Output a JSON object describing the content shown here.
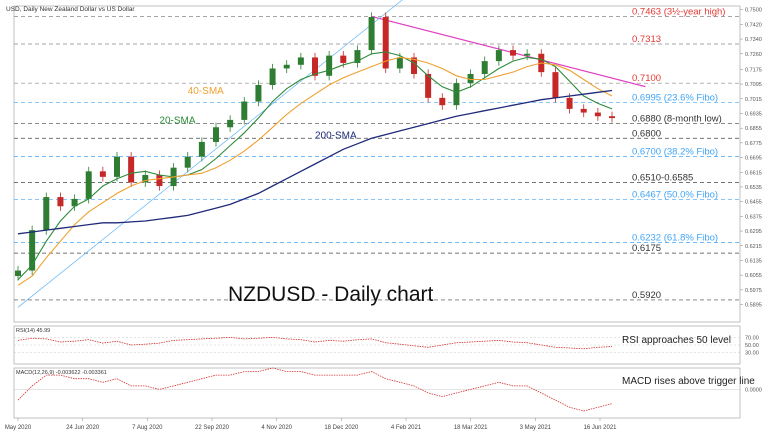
{
  "header": {
    "title": "USD, Daily  New Zealand Dollar vs US Dollar"
  },
  "colors": {
    "price_up": "#2e7d32",
    "price_down": "#c62828",
    "sma20": "#2e8b3a",
    "sma40": "#f0a030",
    "sma200": "#1f2a7a",
    "trendline": "#e040c0",
    "channel": "#64b5f6",
    "level_red": "#e53935",
    "level_fibo": "#42a5f5",
    "level_black": "#333333",
    "rsi": "#d32f2f",
    "macd": "#d32f2f"
  },
  "chart_data": [
    {
      "type": "candlestick",
      "title": "NZDUSD - Daily chart",
      "ylim": [
        0.58,
        0.752
      ],
      "x_ticks": [
        "May 2020",
        "24 Jun 2020",
        "7 Aug 2020",
        "22 Sep 2020",
        "4 Nov 2020",
        "18 Dec 2020",
        "4 Feb 2021",
        "18 Mar 2021",
        "3 May 2021",
        "16 Jun 2021"
      ],
      "price_close": [
        0.608,
        0.63,
        0.648,
        0.643,
        0.647,
        0.662,
        0.659,
        0.67,
        0.656,
        0.66,
        0.654,
        0.664,
        0.67,
        0.678,
        0.686,
        0.69,
        0.7,
        0.709,
        0.718,
        0.72,
        0.724,
        0.714,
        0.725,
        0.721,
        0.728,
        0.746,
        0.718,
        0.724,
        0.715,
        0.702,
        0.698,
        0.71,
        0.715,
        0.722,
        0.728,
        0.725,
        0.726,
        0.716,
        0.702,
        0.696,
        0.694,
        0.692,
        0.691
      ],
      "series": [
        {
          "name": "20-SMA",
          "values": [
            0.603,
            0.611,
            0.624,
            0.635,
            0.643,
            0.647,
            0.654,
            0.658,
            0.661,
            0.662,
            0.66,
            0.659,
            0.66,
            0.663,
            0.669,
            0.676,
            0.683,
            0.691,
            0.7,
            0.707,
            0.712,
            0.715,
            0.717,
            0.72,
            0.722,
            0.726,
            0.727,
            0.725,
            0.721,
            0.714,
            0.708,
            0.705,
            0.708,
            0.713,
            0.718,
            0.722,
            0.724,
            0.723,
            0.719,
            0.711,
            0.703,
            0.699,
            0.696
          ]
        },
        {
          "name": "40-SMA",
          "values": [
            0.6,
            0.605,
            0.615,
            0.624,
            0.633,
            0.64,
            0.645,
            0.65,
            0.654,
            0.657,
            0.658,
            0.659,
            0.66,
            0.661,
            0.664,
            0.668,
            0.673,
            0.679,
            0.686,
            0.693,
            0.699,
            0.704,
            0.709,
            0.713,
            0.716,
            0.719,
            0.722,
            0.724,
            0.723,
            0.721,
            0.718,
            0.714,
            0.712,
            0.712,
            0.714,
            0.716,
            0.719,
            0.721,
            0.72,
            0.717,
            0.712,
            0.707,
            0.703
          ]
        },
        {
          "name": "200-SMA",
          "values": [
            0.628,
            0.629,
            0.63,
            0.631,
            0.632,
            0.633,
            0.634,
            0.634,
            0.6345,
            0.635,
            0.636,
            0.637,
            0.638,
            0.64,
            0.642,
            0.644,
            0.647,
            0.65,
            0.654,
            0.658,
            0.662,
            0.666,
            0.67,
            0.674,
            0.677,
            0.68,
            0.682,
            0.684,
            0.686,
            0.688,
            0.69,
            0.692,
            0.6935,
            0.695,
            0.6965,
            0.698,
            0.6995,
            0.701,
            0.702,
            0.703,
            0.704,
            0.705,
            0.706
          ]
        }
      ],
      "levels": [
        {
          "value": 0.7463,
          "label": "0.7463 (3½-year high)",
          "style": "red"
        },
        {
          "value": 0.7313,
          "label": "0.7313",
          "style": "red"
        },
        {
          "value": 0.71,
          "label": "0.7100",
          "style": "red"
        },
        {
          "value": 0.6995,
          "label": "0.6995 (23.6% Fibo)",
          "style": "fibo"
        },
        {
          "value": 0.688,
          "label": "0.6880 (8-month low)",
          "style": "black"
        },
        {
          "value": 0.68,
          "label": "0.6800",
          "style": "black"
        },
        {
          "value": 0.67,
          "label": "0.6700 (38.2% Fibo)",
          "style": "fibo"
        },
        {
          "value": 0.656,
          "label": "0.6510-0.6585",
          "style": "black"
        },
        {
          "value": 0.6467,
          "label": "0.6467 (50.0% Fibo)",
          "style": "fibo"
        },
        {
          "value": 0.6232,
          "label": "0.6232 (61.8% Fibo)",
          "style": "fibo"
        },
        {
          "value": 0.6175,
          "label": "0.6175",
          "style": "black"
        },
        {
          "value": 0.592,
          "label": "0.5920",
          "style": "black"
        }
      ],
      "annotations": [
        {
          "text": "40-SMA",
          "x": 12,
          "y": 0.704,
          "color": "sma40"
        },
        {
          "text": "20-SMA",
          "x": 10,
          "y": 0.688,
          "color": "sma20"
        },
        {
          "text": "200-SMA",
          "x": 21,
          "y": 0.68,
          "color": "sma200"
        }
      ],
      "trendlines": [
        {
          "name": "descending-trendline",
          "points": [
            [
              25,
              0.7463
            ],
            [
              38,
              0.715
            ]
          ],
          "color": "trendline"
        },
        {
          "name": "ascending-channel-line",
          "points": [
            [
              0,
              0.588
            ],
            [
              25,
              0.7463
            ]
          ],
          "color": "channel"
        }
      ],
      "y_ticks": [
        "0.7500",
        "0.7420",
        "0.7340",
        "0.7260",
        "0.7175",
        "0.7095",
        "0.7015",
        "0.6935",
        "0.6855",
        "0.6775",
        "0.6695",
        "0.6615",
        "0.6535",
        "0.6455",
        "0.6375",
        "0.6295",
        "0.6215",
        "0.6135",
        "0.6055",
        "0.5975",
        "0.5895"
      ]
    },
    {
      "type": "line",
      "name": "RSI",
      "header": "RSI(14) 45.99",
      "ylim": [
        0,
        100
      ],
      "y_ticks": [
        "70.00",
        "50.00",
        "30.00"
      ],
      "annotation": "RSI approaches 50 level",
      "values": [
        62,
        68,
        66,
        58,
        60,
        64,
        55,
        60,
        50,
        52,
        55,
        62,
        64,
        66,
        68,
        70,
        66,
        68,
        70,
        66,
        64,
        58,
        62,
        60,
        64,
        66,
        56,
        52,
        48,
        44,
        50,
        56,
        58,
        60,
        62,
        58,
        56,
        50,
        44,
        42,
        40,
        44,
        46
      ]
    },
    {
      "type": "line",
      "name": "MACD",
      "header": "MACD(12,26,9) -0.003622 -0.003361",
      "ylim": [
        -0.008,
        0.006
      ],
      "y_ticks": [
        "0.0000"
      ],
      "annotation": "MACD rises above trigger line",
      "values": [
        -0.003,
        0.001,
        0.004,
        0.004,
        0.003,
        0.003,
        0.002,
        0.003,
        0.001,
        0.001,
        0.0,
        0.001,
        0.002,
        0.003,
        0.004,
        0.004,
        0.005,
        0.005,
        0.006,
        0.005,
        0.005,
        0.004,
        0.004,
        0.004,
        0.004,
        0.005,
        0.003,
        0.002,
        0.001,
        -0.001,
        -0.002,
        -0.001,
        0.0,
        0.001,
        0.002,
        0.001,
        0.001,
        -0.001,
        -0.003,
        -0.005,
        -0.006,
        -0.005,
        -0.004
      ]
    }
  ]
}
